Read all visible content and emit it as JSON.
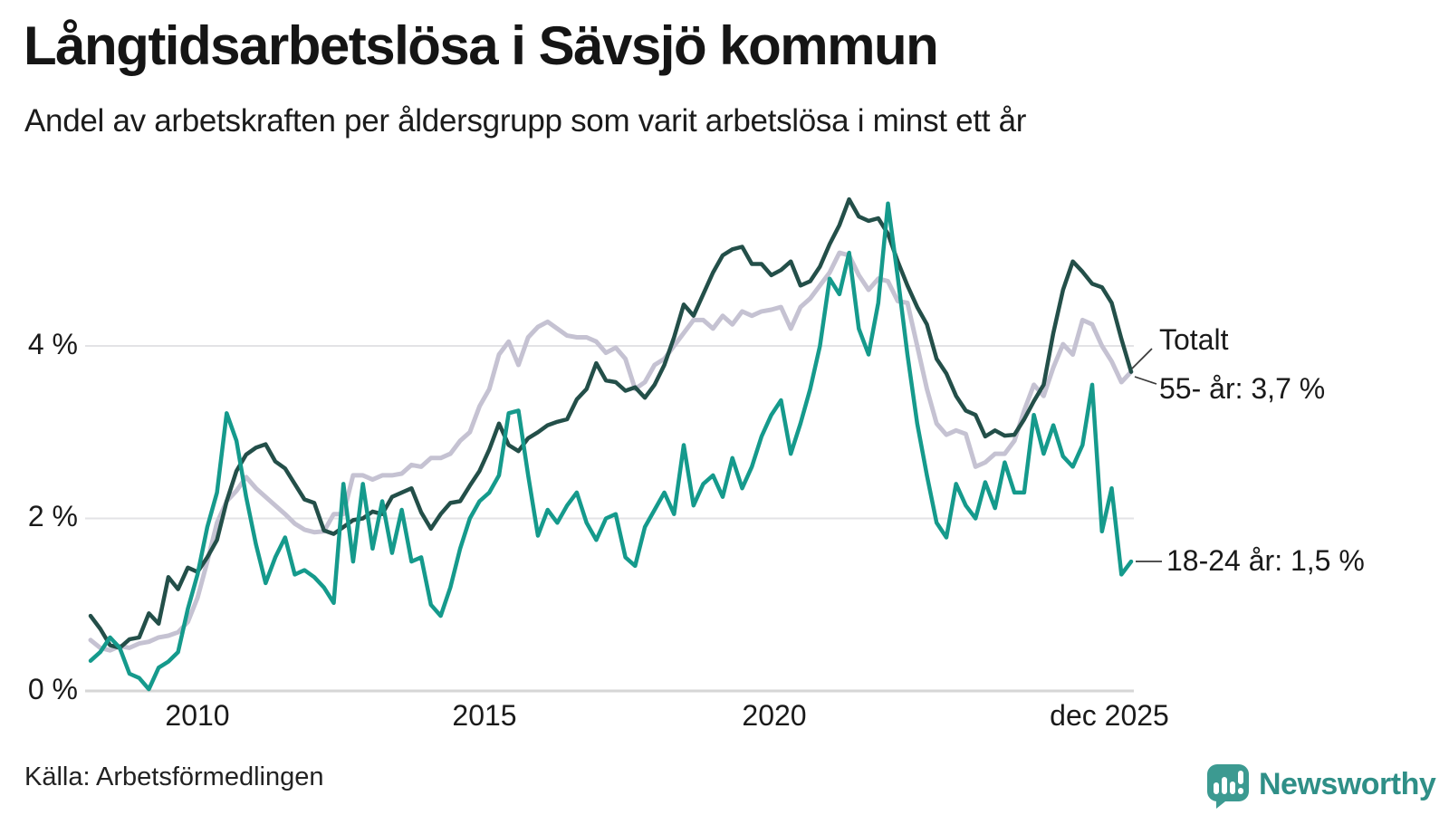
{
  "header": {
    "title": "Långtidsarbetslösa i Sävsjö kommun",
    "subtitle": "Andel av arbetskraften per åldersgrupp som varit arbetslösa i minst ett år"
  },
  "footer": {
    "source": "Källa: Arbetsförmedlingen",
    "brand": "Newsworthy"
  },
  "colors": {
    "total_line": "#234f49",
    "older_line": "#c5c2d2",
    "younger_line": "#159a8c",
    "grid": "#e3e3e6",
    "baseline": "#d6d6d6",
    "brand_teal": "#3c9a91",
    "text": "#1a1a1a"
  },
  "chart_data": {
    "type": "line",
    "title": "Långtidsarbetslösa i Sävsjö kommun",
    "subtitle": "Andel av arbetskraften per åldersgrupp som varit arbetslösa i minst ett år",
    "source": "Källa: Arbetsförmedlingen",
    "unit": "% av arbetskraften",
    "x_start_year": 2008.083,
    "x_step_years": 0.1667,
    "x_range": [
      2008.083,
      2025.917
    ],
    "ylim": [
      0,
      6
    ],
    "grid": "horizontal",
    "legend_position": "end-of-line-labels",
    "y_ticks": [
      {
        "value": 0,
        "label": "0 %"
      },
      {
        "value": 2,
        "label": "2 %"
      },
      {
        "value": 4,
        "label": "4 %"
      }
    ],
    "x_ticks": [
      {
        "year": 2010,
        "label": "2010"
      },
      {
        "year": 2015,
        "label": "2015"
      },
      {
        "year": 2020,
        "label": "2020"
      },
      {
        "year": 2025.92,
        "label": "dec 2025"
      }
    ],
    "series": [
      {
        "name": "Totalt",
        "end_label": "Totalt",
        "color": "#234f49",
        "values": [
          0.87,
          0.72,
          0.53,
          0.5,
          0.6,
          0.62,
          0.9,
          0.78,
          1.32,
          1.18,
          1.43,
          1.38,
          1.55,
          1.75,
          2.2,
          2.55,
          2.74,
          2.82,
          2.86,
          2.66,
          2.58,
          2.4,
          2.22,
          2.18,
          1.86,
          1.82,
          1.9,
          1.98,
          2.0,
          2.08,
          2.05,
          2.25,
          2.3,
          2.35,
          2.07,
          1.88,
          2.05,
          2.18,
          2.2,
          2.38,
          2.55,
          2.8,
          3.1,
          2.85,
          2.78,
          2.93,
          3.0,
          3.08,
          3.12,
          3.15,
          3.38,
          3.5,
          3.8,
          3.6,
          3.58,
          3.48,
          3.52,
          3.4,
          3.55,
          3.78,
          4.1,
          4.48,
          4.35,
          4.6,
          4.85,
          5.05,
          5.12,
          5.15,
          4.95,
          4.95,
          4.82,
          4.88,
          4.98,
          4.7,
          4.75,
          4.92,
          5.18,
          5.4,
          5.7,
          5.5,
          5.45,
          5.48,
          5.3,
          4.98,
          4.7,
          4.45,
          4.25,
          3.85,
          3.68,
          3.42,
          3.25,
          3.2,
          2.95,
          3.02,
          2.96,
          2.97,
          3.15,
          3.36,
          3.55,
          4.15,
          4.65,
          4.98,
          4.86,
          4.72,
          4.68,
          4.5,
          4.08,
          3.7
        ]
      },
      {
        "name": "55- år",
        "end_label": "55- år: 3,7 %",
        "end_value_text": "3,7 %",
        "color": "#c5c2d2",
        "values": [
          0.59,
          0.5,
          0.47,
          0.52,
          0.5,
          0.55,
          0.57,
          0.62,
          0.64,
          0.68,
          0.8,
          1.08,
          1.5,
          1.95,
          2.2,
          2.32,
          2.48,
          2.35,
          2.25,
          2.15,
          2.05,
          1.94,
          1.87,
          1.84,
          1.85,
          2.05,
          2.05,
          2.5,
          2.5,
          2.45,
          2.5,
          2.5,
          2.52,
          2.62,
          2.6,
          2.7,
          2.7,
          2.75,
          2.9,
          3.0,
          3.3,
          3.5,
          3.9,
          4.05,
          3.78,
          4.1,
          4.22,
          4.28,
          4.2,
          4.12,
          4.1,
          4.1,
          4.05,
          3.92,
          3.98,
          3.85,
          3.5,
          3.58,
          3.78,
          3.85,
          4.0,
          4.15,
          4.3,
          4.3,
          4.2,
          4.35,
          4.25,
          4.4,
          4.35,
          4.4,
          4.42,
          4.45,
          4.2,
          4.45,
          4.55,
          4.7,
          4.85,
          5.08,
          5.05,
          4.82,
          4.65,
          4.78,
          4.75,
          4.52,
          4.5,
          4.0,
          3.5,
          3.1,
          2.97,
          3.02,
          2.98,
          2.6,
          2.65,
          2.75,
          2.75,
          2.9,
          3.25,
          3.55,
          3.42,
          3.75,
          4.02,
          3.9,
          4.3,
          4.25,
          4.0,
          3.82,
          3.58,
          3.7
        ]
      },
      {
        "name": "18-24 år",
        "end_label": "18-24 år: 1,5 %",
        "end_value_text": "1,5 %",
        "color": "#159a8c",
        "values": [
          0.35,
          0.45,
          0.62,
          0.5,
          0.2,
          0.15,
          0.02,
          0.27,
          0.34,
          0.45,
          0.95,
          1.35,
          1.9,
          2.3,
          3.22,
          2.9,
          2.25,
          1.7,
          1.25,
          1.55,
          1.78,
          1.35,
          1.4,
          1.32,
          1.2,
          1.02,
          2.4,
          1.5,
          2.4,
          1.65,
          2.2,
          1.6,
          2.1,
          1.5,
          1.55,
          1.0,
          0.87,
          1.2,
          1.65,
          2.0,
          2.2,
          2.3,
          2.5,
          3.22,
          3.25,
          2.5,
          1.8,
          2.1,
          1.95,
          2.15,
          2.3,
          1.95,
          1.75,
          2.0,
          2.05,
          1.55,
          1.45,
          1.9,
          2.1,
          2.3,
          2.05,
          2.85,
          2.15,
          2.4,
          2.5,
          2.25,
          2.7,
          2.35,
          2.6,
          2.95,
          3.2,
          3.37,
          2.75,
          3.1,
          3.5,
          4.0,
          4.78,
          4.6,
          5.08,
          4.2,
          3.9,
          4.5,
          5.65,
          4.8,
          3.9,
          3.1,
          2.5,
          1.95,
          1.78,
          2.4,
          2.15,
          2.0,
          2.42,
          2.12,
          2.65,
          2.3,
          2.3,
          3.2,
          2.75,
          3.08,
          2.72,
          2.6,
          2.85,
          3.55,
          1.85,
          2.35,
          1.35,
          1.5
        ]
      }
    ]
  }
}
